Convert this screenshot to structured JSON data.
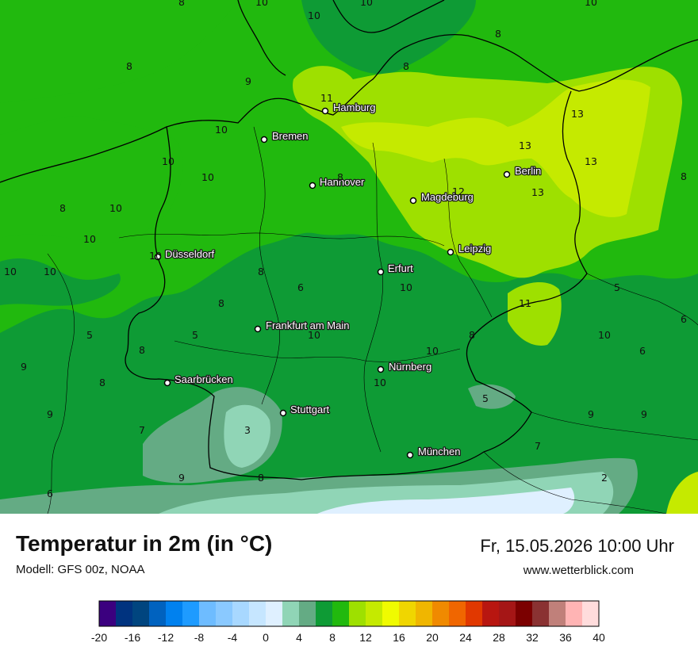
{
  "header": {
    "title": "Temperatur in 2m (in °C)",
    "model": "Modell: GFS 00z, NOAA",
    "datetime": "Fr, 15.05.2026 10:00 Uhr",
    "website": "www.wetterblick.com"
  },
  "cities": [
    {
      "name": "Hamburg"
    },
    {
      "name": "Bremen"
    },
    {
      "name": "Hannover"
    },
    {
      "name": "Berlin"
    },
    {
      "name": "Magdeburg"
    },
    {
      "name": "Leipzig"
    },
    {
      "name": "Düsseldorf"
    },
    {
      "name": "Erfurt"
    },
    {
      "name": "Frankfurt am Main"
    },
    {
      "name": "Nürnberg"
    },
    {
      "name": "Saarbrücken"
    },
    {
      "name": "Stuttgart"
    },
    {
      "name": "München"
    }
  ],
  "isolines": [
    "8",
    "10",
    "10",
    "8",
    "9",
    "8",
    "11",
    "10",
    "10",
    "10",
    "8",
    "10",
    "8",
    "10",
    "10",
    "10",
    "10",
    "8",
    "6",
    "10",
    "13",
    "13",
    "13",
    "13",
    "12",
    "11",
    "5",
    "5",
    "8",
    "8",
    "10",
    "10",
    "9",
    "8",
    "9",
    "7",
    "3",
    "9",
    "8",
    "6",
    "10",
    "10",
    "5",
    "7",
    "9",
    "9",
    "6",
    "8",
    "6",
    "10",
    "8",
    "2",
    "8",
    "10",
    "5"
  ],
  "legend": {
    "colors": [
      "#3b007f",
      "#00337f",
      "#00457f",
      "#0062bf",
      "#0081ef",
      "#1e9bff",
      "#6ebcff",
      "#8ac9ff",
      "#a8d8ff",
      "#c6e6ff",
      "#dff0ff",
      "#90d5b6",
      "#64ab84",
      "#0e9b35",
      "#21b90e",
      "#9ee000",
      "#c5ea00",
      "#f0fb00",
      "#f0d600",
      "#f0b600",
      "#f08a00",
      "#f06600",
      "#e13800",
      "#b81610",
      "#a51616",
      "#7b0000",
      "#8a3232",
      "#c0807a",
      "#ffb4b4",
      "#ffdcdc"
    ],
    "ticks": [
      "-20",
      "-16",
      "-12",
      "-8",
      "-4",
      "0",
      "4",
      "8",
      "12",
      "16",
      "20",
      "24",
      "28",
      "32",
      "36",
      "40"
    ]
  }
}
